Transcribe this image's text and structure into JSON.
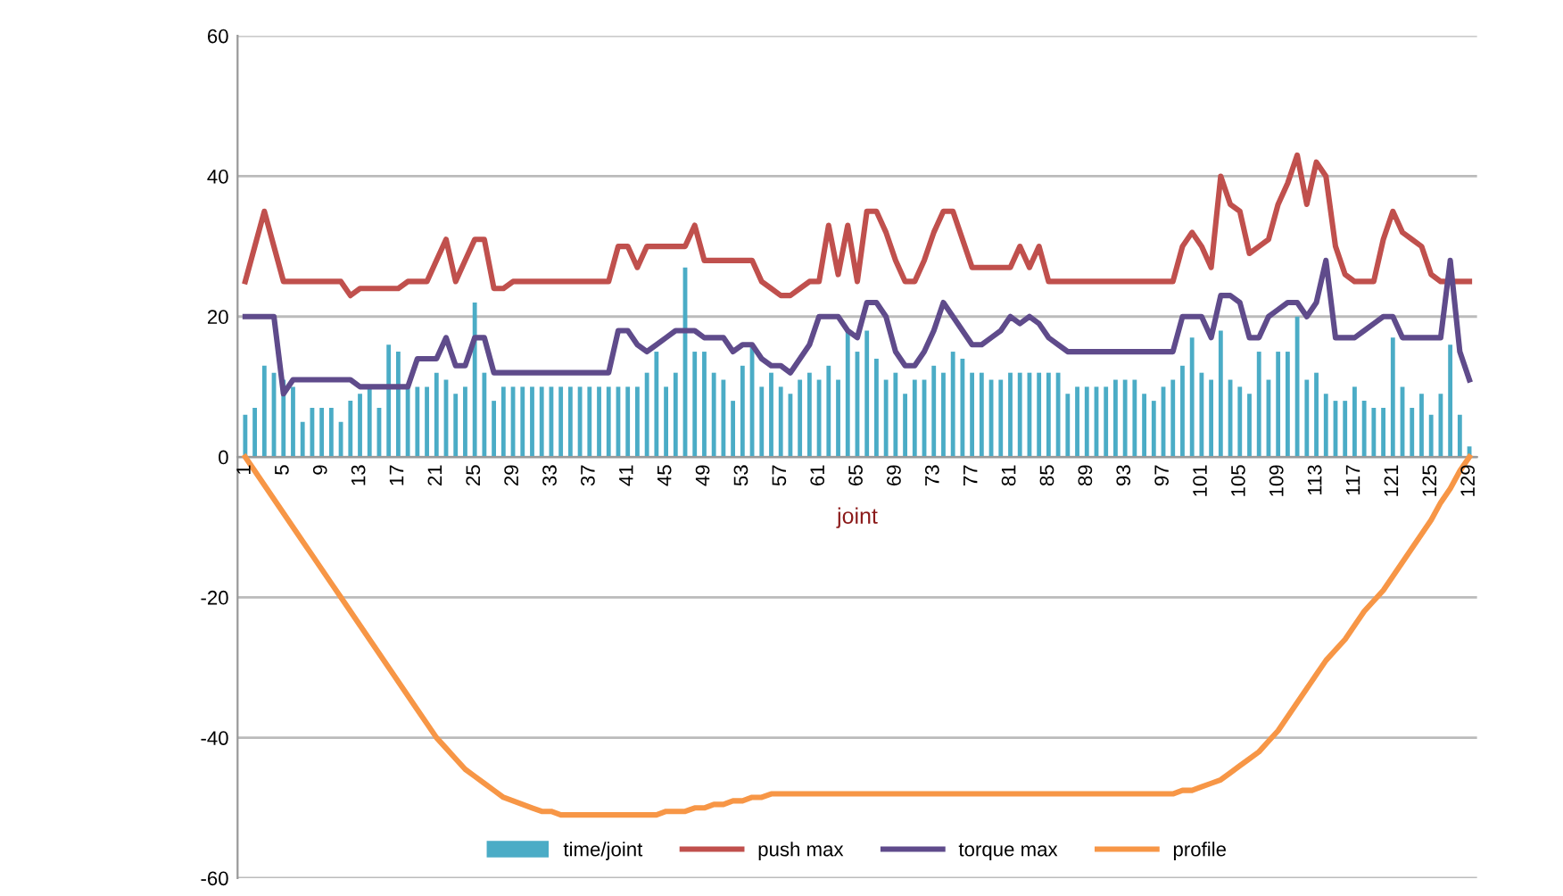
{
  "chart_data": {
    "type": "bar",
    "xlabel": "joint",
    "categories": [
      "1",
      null,
      null,
      null,
      "5",
      null,
      null,
      null,
      "9",
      null,
      null,
      null,
      "13",
      null,
      null,
      null,
      "17",
      null,
      null,
      null,
      "21",
      null,
      null,
      null,
      "25",
      null,
      null,
      null,
      "29",
      null,
      null,
      null,
      "33",
      null,
      null,
      null,
      "37",
      null,
      null,
      null,
      "41",
      null,
      null,
      null,
      "45",
      null,
      null,
      null,
      "49",
      null,
      null,
      null,
      "53",
      null,
      null,
      null,
      "57",
      null,
      null,
      null,
      "61",
      null,
      null,
      null,
      "65",
      null,
      null,
      null,
      "69",
      null,
      null,
      null,
      "73",
      null,
      null,
      null,
      "77",
      null,
      null,
      null,
      "81",
      null,
      null,
      null,
      "85",
      null,
      null,
      null,
      "89",
      null,
      null,
      null,
      "93",
      null,
      null,
      null,
      "97",
      null,
      null,
      null,
      "101",
      null,
      null,
      null,
      "105",
      null,
      null,
      null,
      "109",
      null,
      null,
      null,
      "113",
      null,
      null,
      null,
      "117",
      null,
      null,
      null,
      "121",
      null,
      null,
      null,
      "125",
      null,
      null,
      null,
      "129"
    ],
    "series": [
      {
        "name": "time/joint",
        "color": "#4bacc6",
        "values": [
          6,
          7,
          13,
          12,
          11,
          10,
          5,
          7,
          7,
          7,
          5,
          8,
          9,
          10,
          7,
          16,
          15,
          10,
          10,
          10,
          12,
          11,
          9,
          10,
          22,
          12,
          8,
          10,
          10,
          10,
          10,
          10,
          10,
          10,
          10,
          10,
          10,
          10,
          10,
          10,
          10,
          10,
          12,
          15,
          10,
          12,
          27,
          15,
          15,
          12,
          11,
          8,
          13,
          16,
          10,
          12,
          10,
          9,
          11,
          12,
          11,
          13,
          11,
          18,
          15,
          18,
          14,
          11,
          12,
          9,
          11,
          11,
          13,
          12,
          15,
          14,
          12,
          12,
          11,
          11,
          12,
          12,
          12,
          12,
          12,
          12,
          9,
          10,
          10,
          10,
          10,
          11,
          11,
          11,
          9,
          8,
          10,
          11,
          13,
          17,
          12,
          11,
          18,
          11,
          10,
          9,
          15,
          11,
          15,
          15,
          20,
          11,
          12,
          9,
          8,
          8,
          10,
          8,
          7,
          7,
          17,
          10,
          7,
          9,
          6,
          9,
          16,
          6,
          1.5
        ]
      },
      {
        "name": "push max",
        "type": "line",
        "color": "#c0504d",
        "values": [
          25,
          30,
          35,
          30,
          25,
          25,
          25,
          25,
          25,
          25,
          25,
          23,
          24,
          24,
          24,
          24,
          24,
          25,
          25,
          25,
          28,
          31,
          25,
          28,
          31,
          31,
          24,
          24,
          25,
          25,
          25,
          25,
          25,
          25,
          25,
          25,
          25,
          25,
          25,
          30,
          30,
          27,
          30,
          30,
          30,
          30,
          30,
          33,
          28,
          28,
          28,
          28,
          28,
          28,
          25,
          24,
          23,
          23,
          24,
          25,
          25,
          33,
          26,
          33,
          25,
          35,
          35,
          32,
          28,
          25,
          25,
          28,
          32,
          35,
          35,
          31,
          27,
          27,
          27,
          27,
          27,
          30,
          27,
          30,
          25,
          25,
          25,
          25,
          25,
          25,
          25,
          25,
          25,
          25,
          25,
          25,
          25,
          25,
          30,
          32,
          30,
          27,
          40,
          36,
          35,
          29,
          30,
          31,
          36,
          39,
          43,
          36,
          42,
          40,
          30,
          26,
          25,
          25,
          25,
          31,
          35,
          32,
          31,
          30,
          26,
          25,
          25,
          25,
          25
        ]
      },
      {
        "name": "torque max",
        "type": "line",
        "color": "#5f4b8b",
        "values": [
          20,
          20,
          20,
          20,
          9,
          11,
          11,
          11,
          11,
          11,
          11,
          11,
          10,
          10,
          10,
          10,
          10,
          10,
          14,
          14,
          14,
          17,
          13,
          13,
          17,
          17,
          12,
          12,
          12,
          12,
          12,
          12,
          12,
          12,
          12,
          12,
          12,
          12,
          12,
          18,
          18,
          16,
          15,
          16,
          17,
          18,
          18,
          18,
          17,
          17,
          17,
          15,
          16,
          16,
          14,
          13,
          13,
          12,
          14,
          16,
          20,
          20,
          20,
          18,
          17,
          22,
          22,
          20,
          15,
          13,
          13,
          15,
          18,
          22,
          20,
          18,
          16,
          16,
          17,
          18,
          20,
          19,
          20,
          19,
          17,
          16,
          15,
          15,
          15,
          15,
          15,
          15,
          15,
          15,
          15,
          15,
          15,
          15,
          20,
          20,
          20,
          17,
          23,
          23,
          22,
          17,
          17,
          20,
          21,
          22,
          22,
          20,
          22,
          28,
          17,
          17,
          17,
          18,
          19,
          20,
          20,
          17,
          17,
          17,
          17,
          17,
          28,
          15,
          11
        ]
      },
      {
        "name": "profile",
        "type": "line",
        "color": "#f79646",
        "values": [
          0,
          -2,
          -4,
          -6,
          -8,
          -10,
          -12,
          -14,
          -16,
          -18,
          -20,
          -22,
          -24,
          -26,
          -28,
          -30,
          -32,
          -34,
          -36,
          -38,
          -40,
          -41.5,
          -43,
          -44.5,
          -45.5,
          -46.5,
          -47.5,
          -48.5,
          -49,
          -49.5,
          -50,
          -50.5,
          -50.5,
          -51,
          -51,
          -51,
          -51,
          -51,
          -51,
          -51,
          -51,
          -51,
          -51,
          -51,
          -50.5,
          -50.5,
          -50.5,
          -50,
          -50,
          -49.5,
          -49.5,
          -49,
          -49,
          -48.5,
          -48.5,
          -48,
          -48,
          -48,
          -48,
          -48,
          -48,
          -48,
          -48,
          -48,
          -48,
          -48,
          -48,
          -48,
          -48,
          -48,
          -48,
          -48,
          -48,
          -48,
          -48,
          -48,
          -48,
          -48,
          -48,
          -48,
          -48,
          -48,
          -48,
          -48,
          -48,
          -48,
          -48,
          -48,
          -48,
          -48,
          -48,
          -48,
          -48,
          -48,
          -48,
          -48,
          -48,
          -48,
          -47.5,
          -47.5,
          -47,
          -46.5,
          -46,
          -45,
          -44,
          -43,
          -42,
          -40.5,
          -39,
          -37,
          -35,
          -33,
          -31,
          -29,
          -27.5,
          -26,
          -24,
          -22,
          -20.5,
          -19,
          -17,
          -15,
          -13,
          -11,
          -9,
          -6.5,
          -4.5,
          -2,
          0
        ]
      }
    ],
    "ylim": [
      -60,
      60
    ],
    "yticks": [
      -60,
      -40,
      -20,
      0,
      20,
      40,
      60
    ],
    "grid": "y",
    "legend": "bottom",
    "marker": "none",
    "line_style": "solid"
  }
}
